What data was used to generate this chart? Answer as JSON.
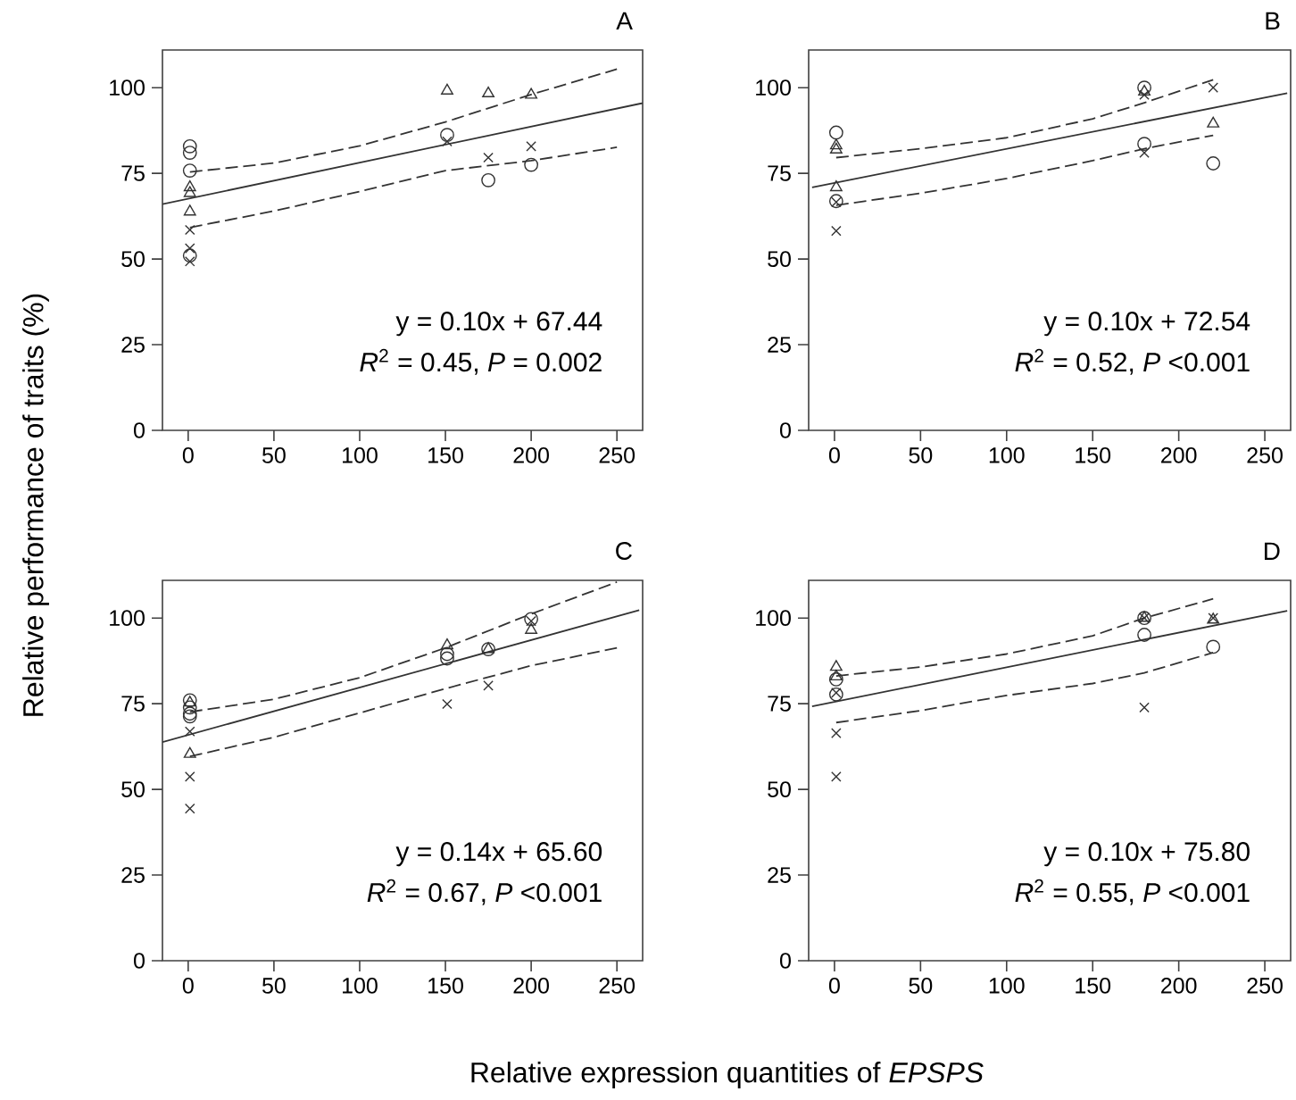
{
  "chart_data": [
    {
      "type": "scatter",
      "title": "A",
      "ylabel": "Relative performance of traits (%)",
      "xlim": [
        -15,
        265
      ],
      "ylim": [
        0,
        111
      ],
      "xticks": [
        0,
        50,
        100,
        150,
        200,
        250
      ],
      "yticks": [
        0,
        25,
        50,
        75,
        100
      ],
      "annotations": [
        "y = 0.10x + 67.44",
        "*R*$^{2}$ = 0.45, *P* = 0.002"
      ],
      "series": [
        {
          "type": "scatter",
          "marker": "circle",
          "color": "#333333",
          "x": [
            1,
            1,
            1,
            1,
            151,
            175,
            200
          ],
          "values": [
            82.9,
            81,
            75.8,
            51,
            86.2,
            73,
            77.5
          ]
        },
        {
          "type": "scatter",
          "marker": "triangle",
          "color": "#333333",
          "x": [
            1,
            1,
            1,
            151,
            175,
            200
          ],
          "values": [
            70.9,
            69.2,
            63.8,
            99.1,
            98.3,
            97.9
          ]
        },
        {
          "type": "scatter",
          "marker": "cross",
          "color": "#333333",
          "x": [
            1,
            1,
            1,
            151,
            175,
            200
          ],
          "values": [
            58.5,
            53.1,
            49.3,
            84.3,
            79.6,
            82.9
          ]
        },
        {
          "type": "line",
          "line_style": "solid",
          "color": "#333333",
          "x": [
            -15,
            265
          ],
          "values": [
            66,
            95.5
          ]
        },
        {
          "type": "line",
          "line_style": "dashed",
          "color": "#333333",
          "x": [
            1,
            50,
            100,
            150,
            200,
            250
          ],
          "values": [
            75.4,
            78,
            83,
            90,
            98,
            105.4
          ]
        },
        {
          "type": "line",
          "line_style": "dashed",
          "color": "#333333",
          "x": [
            1,
            50,
            100,
            150,
            200,
            250
          ],
          "values": [
            59.2,
            64,
            69.7,
            75.8,
            78.7,
            82.6
          ]
        }
      ]
    },
    {
      "type": "scatter",
      "title": "B",
      "xlim": [
        -15,
        265
      ],
      "ylim": [
        0,
        111
      ],
      "xticks": [
        0,
        50,
        100,
        150,
        200,
        250
      ],
      "yticks": [
        0,
        25,
        50,
        75,
        100
      ],
      "annotations": [
        "y = 0.10x + 72.54",
        "*R*$^{2}$ = 0.52, *P* <0.001"
      ],
      "series": [
        {
          "type": "scatter",
          "marker": "circle",
          "color": "#333333",
          "x": [
            1,
            1,
            180,
            180,
            220
          ],
          "values": [
            86.9,
            66.9,
            100,
            83.6,
            77.9
          ]
        },
        {
          "type": "scatter",
          "marker": "triangle",
          "color": "#333333",
          "x": [
            1,
            1,
            1,
            180,
            220
          ],
          "values": [
            83.1,
            81.9,
            70.9,
            98.8,
            89.5
          ]
        },
        {
          "type": "scatter",
          "marker": "cross",
          "color": "#333333",
          "x": [
            1,
            1,
            180,
            180,
            220
          ],
          "values": [
            58.2,
            66.6,
            97.9,
            81,
            100
          ]
        },
        {
          "type": "line",
          "line_style": "solid",
          "color": "#333333",
          "x": [
            -13,
            263
          ],
          "values": [
            70.9,
            98.4
          ]
        },
        {
          "type": "line",
          "line_style": "dashed",
          "color": "#333333",
          "x": [
            1,
            50,
            100,
            150,
            180,
            220
          ],
          "values": [
            79.6,
            82.2,
            85.4,
            90.9,
            95.6,
            102.3
          ]
        },
        {
          "type": "line",
          "line_style": "dashed",
          "color": "#333333",
          "x": [
            1,
            50,
            100,
            150,
            180,
            220
          ],
          "values": [
            65.7,
            69.2,
            73.5,
            78.7,
            82.2,
            86.1
          ]
        }
      ]
    },
    {
      "type": "scatter",
      "title": "C",
      "xlabel": "Relative expression quantities of *EPSPS*",
      "xlim": [
        -15,
        265
      ],
      "ylim": [
        0,
        111
      ],
      "xticks": [
        0,
        50,
        100,
        150,
        200,
        250
      ],
      "yticks": [
        0,
        25,
        50,
        75,
        100
      ],
      "annotations": [
        "y = 0.14x + 65.60",
        "*R*$^{2}$ = 0.67, *P* <0.001"
      ],
      "series": [
        {
          "type": "scatter",
          "marker": "circle",
          "color": "#333333",
          "x": [
            1,
            1,
            1,
            1,
            151,
            151,
            175,
            200
          ],
          "values": [
            76,
            73.9,
            72.1,
            71.3,
            88.2,
            89.5,
            90.9,
            99.7
          ]
        },
        {
          "type": "scatter",
          "marker": "triangle",
          "color": "#333333",
          "x": [
            1,
            1,
            151,
            175,
            200
          ],
          "values": [
            75.3,
            60.3,
            92,
            90.9,
            96.5
          ]
        },
        {
          "type": "scatter",
          "marker": "cross",
          "color": "#333333",
          "x": [
            1,
            1,
            1,
            151,
            175,
            200
          ],
          "values": [
            66.9,
            53.7,
            44.4,
            74.9,
            80.3,
            99.1
          ]
        },
        {
          "type": "line",
          "line_style": "solid",
          "color": "#333333",
          "x": [
            -15,
            263
          ],
          "values": [
            63.8,
            102.3
          ]
        },
        {
          "type": "line",
          "line_style": "dashed",
          "color": "#333333",
          "x": [
            1,
            50,
            100,
            150,
            200,
            250
          ],
          "values": [
            72.6,
            76.3,
            82.6,
            91.3,
            101.2,
            110.5
          ]
        },
        {
          "type": "line",
          "line_style": "dashed",
          "color": "#333333",
          "x": [
            1,
            50,
            100,
            150,
            200,
            250
          ],
          "values": [
            59.6,
            65.2,
            72.3,
            79.4,
            86.1,
            91.3
          ]
        }
      ]
    },
    {
      "type": "scatter",
      "title": "D",
      "xlim": [
        -15,
        265
      ],
      "ylim": [
        0,
        111
      ],
      "xticks": [
        0,
        50,
        100,
        150,
        200,
        250
      ],
      "yticks": [
        0,
        25,
        50,
        75,
        100
      ],
      "annotations": [
        "y = 0.10x + 75.80",
        "*R*$^{2}$ = 0.55, *P* <0.001"
      ],
      "series": [
        {
          "type": "scatter",
          "marker": "circle",
          "color": "#333333",
          "x": [
            1,
            1,
            180,
            180,
            220
          ],
          "values": [
            82.1,
            77.7,
            100,
            95.1,
            91.6
          ]
        },
        {
          "type": "scatter",
          "marker": "triangle",
          "color": "#333333",
          "x": [
            1,
            1,
            180,
            220
          ],
          "values": [
            85.7,
            82.9,
            100,
            99.5
          ]
        },
        {
          "type": "scatter",
          "marker": "cross",
          "color": "#333333",
          "x": [
            1,
            1,
            1,
            180,
            180,
            220
          ],
          "values": [
            78.2,
            66.4,
            53.7,
            73.9,
            100,
            100
          ]
        },
        {
          "type": "line",
          "line_style": "solid",
          "color": "#333333",
          "x": [
            -13,
            263
          ],
          "values": [
            74.2,
            102.1
          ]
        },
        {
          "type": "line",
          "line_style": "dashed",
          "color": "#333333",
          "x": [
            1,
            50,
            100,
            150,
            180,
            220
          ],
          "values": [
            83.1,
            85.7,
            89.5,
            94.8,
            100,
            105.6
          ]
        },
        {
          "type": "line",
          "line_style": "dashed",
          "color": "#333333",
          "x": [
            1,
            50,
            100,
            150,
            180,
            220
          ],
          "values": [
            69.5,
            73,
            77.4,
            80.9,
            84,
            89.9
          ]
        }
      ]
    }
  ]
}
